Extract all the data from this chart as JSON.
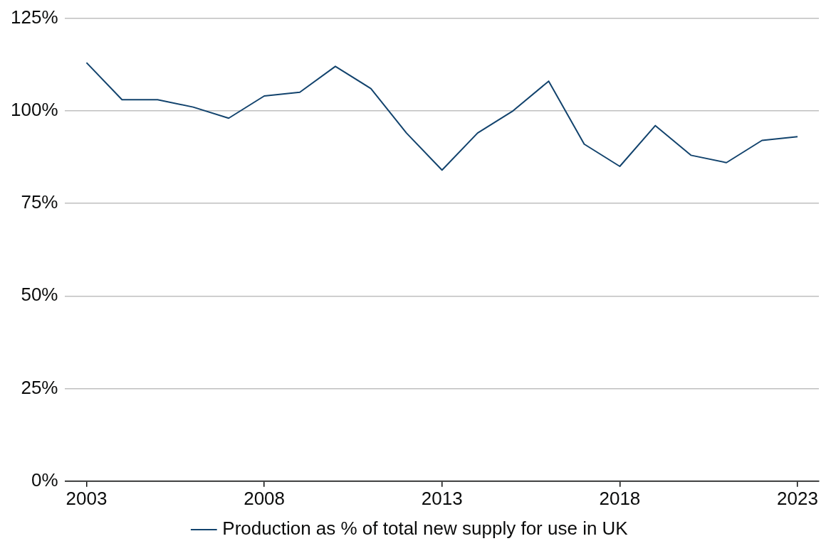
{
  "chart_data": {
    "type": "line",
    "x": [
      2003,
      2004,
      2005,
      2006,
      2007,
      2008,
      2009,
      2010,
      2011,
      2012,
      2013,
      2014,
      2015,
      2016,
      2017,
      2018,
      2019,
      2020,
      2021,
      2022,
      2023
    ],
    "series": [
      {
        "name": "Production as % of total new supply for use in UK",
        "color": "#12436d",
        "values": [
          113,
          103,
          103,
          101,
          98,
          104,
          105,
          112,
          106,
          94,
          84,
          94,
          100,
          108,
          91,
          85,
          96,
          88,
          86,
          92,
          93
        ]
      }
    ],
    "xlim": [
      2002.4,
      2023.6
    ],
    "xticks": [
      2003,
      2008,
      2013,
      2018,
      2023
    ],
    "ylim": [
      0,
      125
    ],
    "yticks": [
      {
        "value": 0,
        "label": "0%"
      },
      {
        "value": 25,
        "label": "25%"
      },
      {
        "value": 50,
        "label": "50%"
      },
      {
        "value": 75,
        "label": "75%"
      },
      {
        "value": 100,
        "label": "100%"
      },
      {
        "value": 125,
        "label": "125%"
      }
    ],
    "grid": "y",
    "legend": "bottom",
    "marker": "none",
    "line_style": "solid"
  }
}
